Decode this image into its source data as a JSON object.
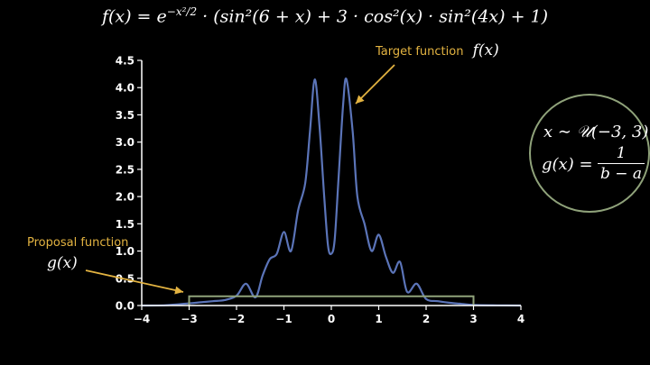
{
  "formula": "f(x) = e^{−x²/2} · (sin²(6 + x) + 3 · cos²(x) · sin²(4x) + 1)",
  "formula_parts": {
    "lhs": "f(x) = e",
    "exp": "−x²/2",
    "rhs": " · (sin²(6 + x) + 3 · cos²(x) · sin²(4x) + 1)"
  },
  "annotations": {
    "target_label": "Target function",
    "target_math": "f(x)",
    "proposal_label": "Proposal function",
    "proposal_math": "g(x)"
  },
  "side_box": {
    "line1": "x ∼ 𝒰(−3, 3)",
    "line2_lhs": "g(x) =",
    "frac_num": "1",
    "frac_den": "b − a"
  },
  "colors": {
    "background": "#000000",
    "target_curve": "#5b74b8",
    "proposal_box": "#8fa27a",
    "axis": "#ffffff",
    "annotation": "#e3b341",
    "ellipse": "#8fa27a"
  },
  "chart_data": {
    "type": "line",
    "title": "",
    "xlabel": "",
    "ylabel": "",
    "xlim": [
      -4,
      4
    ],
    "ylim": [
      0,
      4.5
    ],
    "xticks": [
      -4,
      -3,
      -2,
      -1,
      0,
      1,
      2,
      3,
      4
    ],
    "yticks": [
      0.0,
      0.5,
      1.0,
      1.5,
      2.0,
      2.5,
      3.0,
      3.5,
      4.0,
      4.5
    ],
    "ytick_labels": [
      "0.0",
      "0.5",
      "1.0",
      "1.5",
      "2.0",
      "2.5",
      "3.0",
      "3.5",
      "4.0",
      "4.5"
    ],
    "grid": false,
    "series": [
      {
        "name": "f(x)",
        "x": [
          -4.0,
          -3.5,
          -3.0,
          -2.75,
          -2.5,
          -2.25,
          -2.0,
          -1.8,
          -1.6,
          -1.45,
          -1.3,
          -1.15,
          -1.0,
          -0.85,
          -0.7,
          -0.55,
          -0.45,
          -0.35,
          -0.25,
          -0.15,
          -0.07,
          0.0,
          0.07,
          0.15,
          0.25,
          0.32,
          0.45,
          0.55,
          0.7,
          0.85,
          1.0,
          1.15,
          1.3,
          1.45,
          1.6,
          1.8,
          2.0,
          2.25,
          2.5,
          2.75,
          3.0,
          3.5,
          4.0
        ],
        "y": [
          0.0,
          0.005,
          0.04,
          0.06,
          0.08,
          0.1,
          0.18,
          0.4,
          0.15,
          0.55,
          0.85,
          0.95,
          1.35,
          1.0,
          1.75,
          2.25,
          3.2,
          4.15,
          3.3,
          2.0,
          1.1,
          0.95,
          1.2,
          2.3,
          3.7,
          4.15,
          3.2,
          2.0,
          1.5,
          1.0,
          1.3,
          0.9,
          0.6,
          0.8,
          0.25,
          0.4,
          0.12,
          0.08,
          0.05,
          0.03,
          0.01,
          0.003,
          0.0
        ]
      },
      {
        "name": "g(x)",
        "x": [
          -3,
          -3,
          3,
          3
        ],
        "y": [
          0,
          0.17,
          0.17,
          0
        ]
      }
    ]
  }
}
